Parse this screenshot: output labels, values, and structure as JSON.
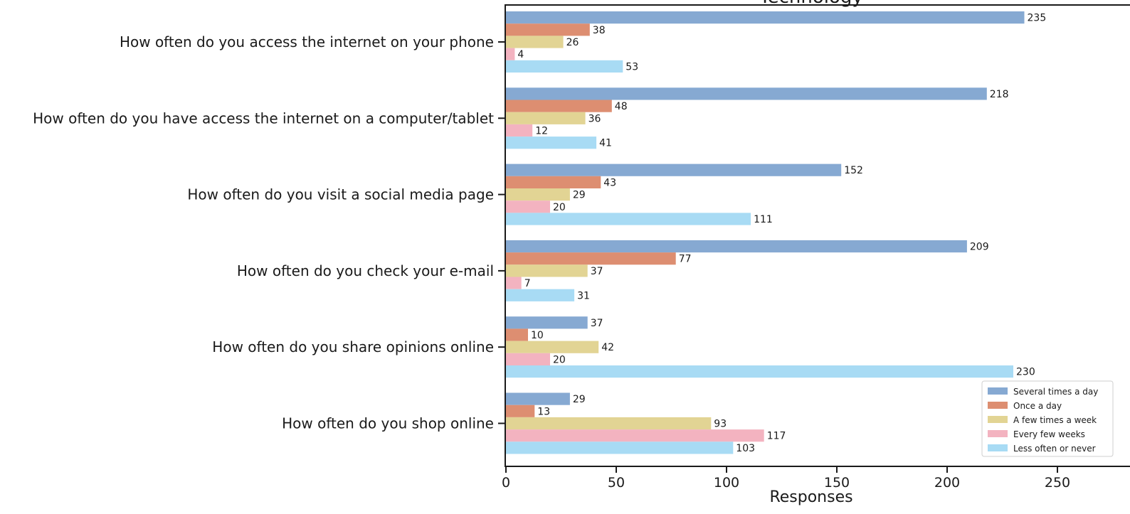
{
  "chart_data": {
    "type": "bar",
    "orientation": "horizontal",
    "title": "Technology",
    "xlabel": "Responses",
    "ylabel": "",
    "xlim": [
      0,
      260
    ],
    "xticks": [
      0,
      50,
      100,
      150,
      200,
      250
    ],
    "grid": false,
    "legend_position": "bottom-right",
    "categories": [
      "How often do you access the internet on your phone",
      "How often do you have access the internet on a computer/tablet",
      "How often do you visit a social media page",
      "How often do you check your e-mail",
      "How often do you share opinions online",
      "How often do you shop online"
    ],
    "series": [
      {
        "name": "Several times a day",
        "color": "#86a9d2",
        "values": [
          235,
          218,
          152,
          209,
          37,
          29
        ]
      },
      {
        "name": "Once a day",
        "color": "#dd8e71",
        "values": [
          38,
          48,
          43,
          77,
          10,
          13
        ]
      },
      {
        "name": "A few times a week",
        "color": "#e2d494",
        "values": [
          26,
          36,
          29,
          37,
          42,
          93
        ]
      },
      {
        "name": "Every few weeks",
        "color": "#f3b3c0",
        "values": [
          4,
          12,
          20,
          7,
          20,
          117
        ]
      },
      {
        "name": "Less often or never",
        "color": "#a8dbf4",
        "values": [
          53,
          41,
          111,
          31,
          230,
          103
        ]
      }
    ]
  }
}
